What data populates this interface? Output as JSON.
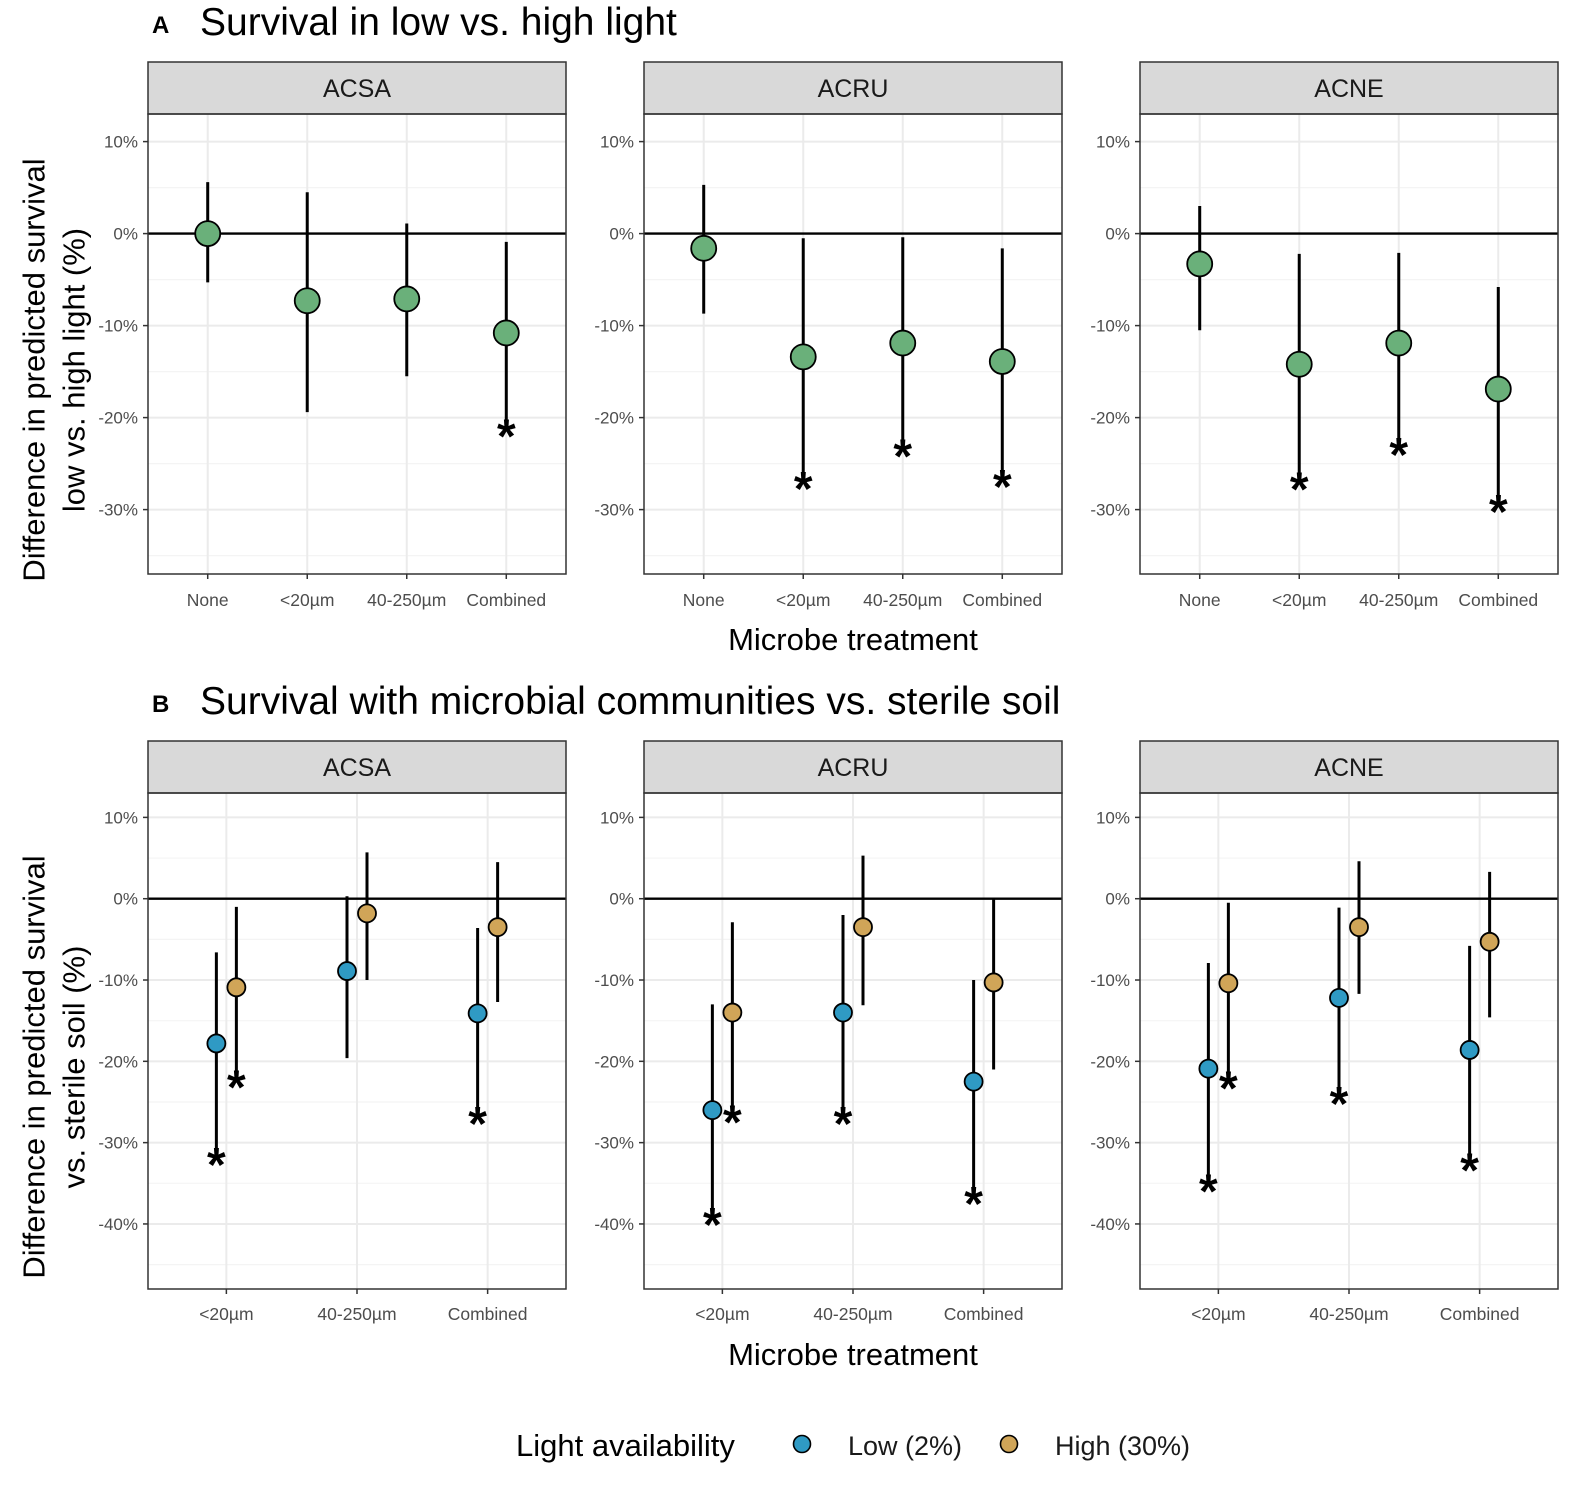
{
  "figure": {
    "legend": {
      "title": "Light availability",
      "items": [
        {
          "label": "Low (2%)",
          "color": "#2f9ac4"
        },
        {
          "label": "High (30%)",
          "color": "#d0a558"
        }
      ]
    }
  },
  "chart_data": [
    {
      "id": "A",
      "panel_letter": "A",
      "type": "scatter",
      "subtype": "pointrange",
      "title": "Survival in low vs. high light",
      "ylabel_lines": [
        "Difference in predicted survival",
        "low vs. high light (%)"
      ],
      "xlabel": "Microbe treatment",
      "ylim": [
        -37,
        13
      ],
      "yticks": [
        10,
        0,
        -10,
        -20,
        -30
      ],
      "ytick_labels": [
        "10%",
        "0%",
        "-10%",
        "-20%",
        "-30%"
      ],
      "categories": [
        "None",
        "<20µm",
        "40-250µm",
        "Combined"
      ],
      "point_color": "#6ab07a",
      "reference_line": 0,
      "facets": [
        {
          "label": "ACSA",
          "series": [
            {
              "name": "Low vs. high light",
              "color": "#6ab07a",
              "points": [
                {
                  "x": "None",
                  "y": 0.0,
                  "lo": -5.3,
                  "hi": 5.6,
                  "sig": false
                },
                {
                  "x": "<20µm",
                  "y": -7.3,
                  "lo": -19.4,
                  "hi": 4.5,
                  "sig": false
                },
                {
                  "x": "40-250µm",
                  "y": -7.1,
                  "lo": -15.5,
                  "hi": 1.1,
                  "sig": false
                },
                {
                  "x": "Combined",
                  "y": -10.8,
                  "lo": -20.3,
                  "hi": -0.9,
                  "sig": true
                }
              ]
            }
          ]
        },
        {
          "label": "ACRU",
          "series": [
            {
              "name": "Low vs. high light",
              "color": "#6ab07a",
              "points": [
                {
                  "x": "None",
                  "y": -1.6,
                  "lo": -8.7,
                  "hi": 5.3,
                  "sig": false
                },
                {
                  "x": "<20µm",
                  "y": -13.4,
                  "lo": -26.0,
                  "hi": -0.5,
                  "sig": true
                },
                {
                  "x": "40-250µm",
                  "y": -11.9,
                  "lo": -22.5,
                  "hi": -0.4,
                  "sig": true
                },
                {
                  "x": "Combined",
                  "y": -13.9,
                  "lo": -25.8,
                  "hi": -1.6,
                  "sig": true
                }
              ]
            }
          ]
        },
        {
          "label": "ACNE",
          "series": [
            {
              "name": "Low vs. high light",
              "color": "#6ab07a",
              "points": [
                {
                  "x": "None",
                  "y": -3.3,
                  "lo": -10.5,
                  "hi": 3.0,
                  "sig": false
                },
                {
                  "x": "<20µm",
                  "y": -14.2,
                  "lo": -26.1,
                  "hi": -2.2,
                  "sig": true
                },
                {
                  "x": "40-250µm",
                  "y": -11.9,
                  "lo": -22.3,
                  "hi": -2.1,
                  "sig": true
                },
                {
                  "x": "Combined",
                  "y": -16.9,
                  "lo": -28.5,
                  "hi": -5.8,
                  "sig": true
                }
              ]
            }
          ]
        }
      ]
    },
    {
      "id": "B",
      "panel_letter": "B",
      "type": "scatter",
      "subtype": "pointrange",
      "title": "Survival with  microbial communities vs. sterile soil",
      "ylabel_lines": [
        "Difference in predicted survival",
        "vs. sterile soil (%)"
      ],
      "xlabel": "Microbe treatment",
      "ylim": [
        -48,
        13
      ],
      "yticks": [
        10,
        0,
        -10,
        -20,
        -30,
        -40
      ],
      "ytick_labels": [
        "10%",
        "0%",
        "-10%",
        "-20%",
        "-30%",
        "-40%"
      ],
      "categories": [
        "<20µm",
        "40-250µm",
        "Combined"
      ],
      "reference_line": 0,
      "facets": [
        {
          "label": "ACSA",
          "series": [
            {
              "name": "Low (2%)",
              "color": "#2f9ac4",
              "points": [
                {
                  "x": "<20µm",
                  "y": -17.8,
                  "lo": -31.0,
                  "hi": -6.6,
                  "sig": true
                },
                {
                  "x": "40-250µm",
                  "y": -8.9,
                  "lo": -19.6,
                  "hi": 0.3,
                  "sig": false
                },
                {
                  "x": "Combined",
                  "y": -14.1,
                  "lo": -26.0,
                  "hi": -3.6,
                  "sig": true
                }
              ]
            },
            {
              "name": "High (30%)",
              "color": "#d0a558",
              "points": [
                {
                  "x": "<20µm",
                  "y": -10.9,
                  "lo": -21.5,
                  "hi": -1.0,
                  "sig": true
                },
                {
                  "x": "40-250µm",
                  "y": -1.8,
                  "lo": -10.0,
                  "hi": 5.7,
                  "sig": false
                },
                {
                  "x": "Combined",
                  "y": -3.5,
                  "lo": -12.7,
                  "hi": 4.5,
                  "sig": false
                }
              ]
            }
          ]
        },
        {
          "label": "ACRU",
          "series": [
            {
              "name": "Low (2%)",
              "color": "#2f9ac4",
              "points": [
                {
                  "x": "<20µm",
                  "y": -26.0,
                  "lo": -38.4,
                  "hi": -13.0,
                  "sig": true
                },
                {
                  "x": "40-250µm",
                  "y": -14.0,
                  "lo": -26.0,
                  "hi": -2.0,
                  "sig": true
                },
                {
                  "x": "Combined",
                  "y": -22.5,
                  "lo": -35.8,
                  "hi": -10.0,
                  "sig": true
                }
              ]
            },
            {
              "name": "High (30%)",
              "color": "#d0a558",
              "points": [
                {
                  "x": "<20µm",
                  "y": -14.0,
                  "lo": -25.8,
                  "hi": -2.9,
                  "sig": true
                },
                {
                  "x": "40-250µm",
                  "y": -3.5,
                  "lo": -13.1,
                  "hi": 5.3,
                  "sig": false
                },
                {
                  "x": "Combined",
                  "y": -10.3,
                  "lo": -21.0,
                  "hi": 0.0,
                  "sig": false
                }
              ]
            }
          ]
        },
        {
          "label": "ACNE",
          "series": [
            {
              "name": "Low (2%)",
              "color": "#2f9ac4",
              "points": [
                {
                  "x": "<20µm",
                  "y": -20.9,
                  "lo": -34.3,
                  "hi": -7.9,
                  "sig": true
                },
                {
                  "x": "40-250µm",
                  "y": -12.2,
                  "lo": -23.5,
                  "hi": -1.1,
                  "sig": true
                },
                {
                  "x": "Combined",
                  "y": -18.6,
                  "lo": -31.7,
                  "hi": -5.8,
                  "sig": true
                }
              ]
            },
            {
              "name": "High (30%)",
              "color": "#d0a558",
              "points": [
                {
                  "x": "<20µm",
                  "y": -10.4,
                  "lo": -21.6,
                  "hi": -0.5,
                  "sig": true
                },
                {
                  "x": "40-250µm",
                  "y": -3.5,
                  "lo": -11.7,
                  "hi": 4.6,
                  "sig": false
                },
                {
                  "x": "Combined",
                  "y": -5.3,
                  "lo": -14.6,
                  "hi": 3.3,
                  "sig": false
                }
              ]
            }
          ]
        }
      ]
    }
  ]
}
